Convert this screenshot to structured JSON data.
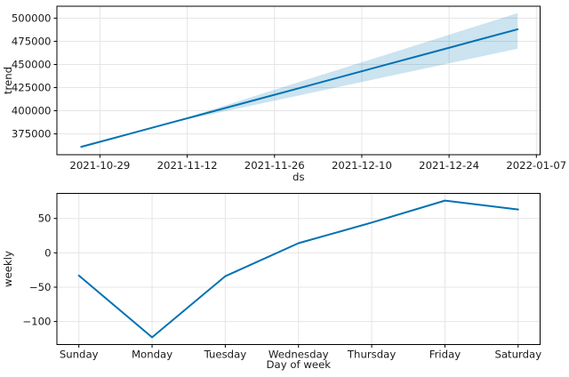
{
  "figure": {
    "background": "#ffffff",
    "accent_color": "#0072B2",
    "band_color": "rgba(0, 114, 178, 0.2)",
    "grid_color": "#e5e5e5",
    "spine_color": "#000000",
    "text_color": "#1a1a1a"
  },
  "chart_data": [
    {
      "type": "line",
      "name": "trend",
      "xlabel": "ds",
      "ylabel": "trend",
      "grid": true,
      "legend": "none",
      "x_start_date": "2021-10-26",
      "x_ticks": [
        {
          "day": 3,
          "label": "2021-10-29"
        },
        {
          "day": 17,
          "label": "2021-11-12"
        },
        {
          "day": 31,
          "label": "2021-11-26"
        },
        {
          "day": 45,
          "label": "2021-12-10"
        },
        {
          "day": 59,
          "label": "2021-12-24"
        },
        {
          "day": 73,
          "label": "2022-01-07"
        }
      ],
      "y_ticks": [
        375000,
        400000,
        425000,
        450000,
        475000,
        500000
      ],
      "xlim_days": [
        -3.9,
        73.6
      ],
      "ylim": [
        352500,
        512900
      ],
      "series": [
        {
          "name": "trend",
          "x_days": [
            0,
            7,
            14,
            21,
            28,
            35,
            42,
            49,
            56,
            63,
            70
          ],
          "values": [
            361000,
            373700,
            386400,
            399100,
            411800,
            424500,
            437200,
            449900,
            462600,
            475300,
            488000
          ]
        }
      ],
      "uncertainty_band": {
        "x_days": [
          14,
          21,
          28,
          35,
          42,
          49,
          56,
          63,
          70
        ],
        "lower": [
          386400,
          396500,
          406500,
          416600,
          426700,
          436800,
          446900,
          456900,
          467000
        ],
        "upper": [
          386400,
          401300,
          416200,
          431100,
          446000,
          460800,
          475700,
          490600,
          505500
        ]
      }
    },
    {
      "type": "line",
      "name": "weekly",
      "xlabel": "Day of week",
      "ylabel": "weekly",
      "grid": true,
      "legend": "none",
      "categories": [
        "Sunday",
        "Monday",
        "Tuesday",
        "Wednesday",
        "Thursday",
        "Friday",
        "Saturday"
      ],
      "values": [
        -33,
        -123,
        -34,
        14,
        44,
        76,
        63
      ],
      "y_ticks": [
        -100,
        -50,
        0,
        50
      ],
      "xlim": [
        -0.3,
        6.3
      ],
      "ylim": [
        -133.5,
        86.5
      ]
    }
  ]
}
